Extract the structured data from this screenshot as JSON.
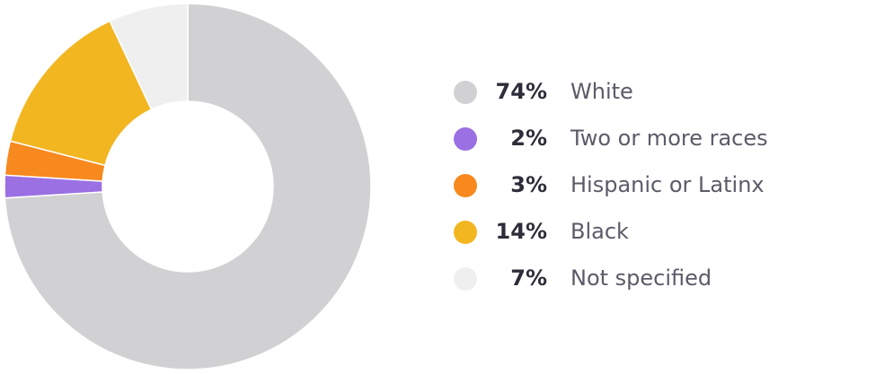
{
  "chart_data": {
    "type": "donut",
    "categories": [
      "White",
      "Two or more races",
      "Hispanic or Latinx",
      "Black",
      "Not specified"
    ],
    "values": [
      74,
      2,
      3,
      14,
      7
    ],
    "value_labels": [
      "74%",
      "2%",
      "3%",
      "14%",
      "7%"
    ],
    "colors": [
      "#d1d1d3",
      "#9a70e2",
      "#f7891f",
      "#f2b621",
      "#efeff0"
    ]
  }
}
